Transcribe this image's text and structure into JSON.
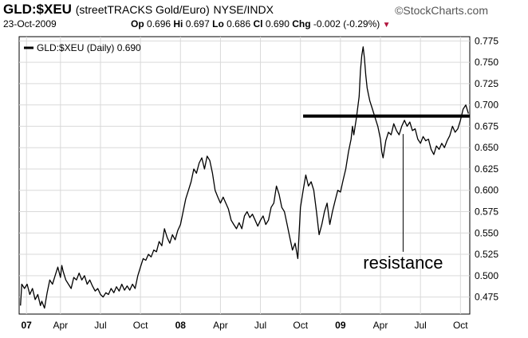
{
  "header": {
    "symbol": "GLD:$XEU",
    "description": "(streetTRACKS Gold/Euro)",
    "exchange": "NYSE/INDX",
    "brand": "©StockCharts.com",
    "date": "23-Oct-2009",
    "open_label": "Op",
    "open": "0.696",
    "high_label": "Hi",
    "high": "0.697",
    "low_label": "Lo",
    "low": "0.686",
    "close_label": "Cl",
    "close": "0.690",
    "change_label": "Chg",
    "change": "-0.002 (-0.29%)",
    "change_color": "#b0143c"
  },
  "chart_data": {
    "type": "line",
    "legend": "GLD:$XEU (Daily) 0.690",
    "legend_position": "top-left",
    "ylim": [
      0.455,
      0.78
    ],
    "yticks": [
      "0.775",
      "0.750",
      "0.725",
      "0.700",
      "0.675",
      "0.650",
      "0.625",
      "0.600",
      "0.575",
      "0.550",
      "0.525",
      "0.500",
      "0.475"
    ],
    "grid": true,
    "x_labels": [
      {
        "label": "07",
        "t": 0.45,
        "bold": true
      },
      {
        "label": "Apr",
        "t": 3.0,
        "bold": false
      },
      {
        "label": "Jul",
        "t": 6.0,
        "bold": false
      },
      {
        "label": "Oct",
        "t": 9.0,
        "bold": false
      },
      {
        "label": "08",
        "t": 12.0,
        "bold": true
      },
      {
        "label": "Apr",
        "t": 15.0,
        "bold": false
      },
      {
        "label": "Jul",
        "t": 18.0,
        "bold": false
      },
      {
        "label": "Oct",
        "t": 21.0,
        "bold": false
      },
      {
        "label": "09",
        "t": 24.0,
        "bold": true
      },
      {
        "label": "Apr",
        "t": 27.0,
        "bold": false
      },
      {
        "label": "Jul",
        "t": 30.0,
        "bold": false
      },
      {
        "label": "Oct",
        "t": 33.0,
        "bold": false
      }
    ],
    "x_range_months": [
      -0.1,
      33.7
    ],
    "series": [
      {
        "points": [
          [
            0.0,
            0.465
          ],
          [
            0.1,
            0.49
          ],
          [
            0.3,
            0.485
          ],
          [
            0.5,
            0.49
          ],
          [
            0.7,
            0.478
          ],
          [
            0.9,
            0.485
          ],
          [
            1.1,
            0.472
          ],
          [
            1.3,
            0.478
          ],
          [
            1.5,
            0.465
          ],
          [
            1.6,
            0.47
          ],
          [
            1.8,
            0.462
          ],
          [
            2.0,
            0.48
          ],
          [
            2.2,
            0.495
          ],
          [
            2.4,
            0.49
          ],
          [
            2.6,
            0.5
          ],
          [
            2.8,
            0.51
          ],
          [
            3.0,
            0.498
          ],
          [
            3.1,
            0.512
          ],
          [
            3.2,
            0.505
          ],
          [
            3.4,
            0.495
          ],
          [
            3.6,
            0.49
          ],
          [
            3.8,
            0.485
          ],
          [
            4.0,
            0.498
          ],
          [
            4.2,
            0.495
          ],
          [
            4.4,
            0.503
          ],
          [
            4.6,
            0.495
          ],
          [
            4.8,
            0.5
          ],
          [
            5.0,
            0.49
          ],
          [
            5.2,
            0.495
          ],
          [
            5.4,
            0.488
          ],
          [
            5.6,
            0.482
          ],
          [
            5.8,
            0.485
          ],
          [
            6.0,
            0.478
          ],
          [
            6.2,
            0.475
          ],
          [
            6.4,
            0.48
          ],
          [
            6.6,
            0.478
          ],
          [
            6.8,
            0.485
          ],
          [
            7.0,
            0.48
          ],
          [
            7.2,
            0.487
          ],
          [
            7.4,
            0.482
          ],
          [
            7.6,
            0.49
          ],
          [
            7.8,
            0.483
          ],
          [
            8.0,
            0.488
          ],
          [
            8.2,
            0.483
          ],
          [
            8.4,
            0.49
          ],
          [
            8.6,
            0.485
          ],
          [
            8.8,
            0.5
          ],
          [
            9.0,
            0.51
          ],
          [
            9.2,
            0.52
          ],
          [
            9.4,
            0.518
          ],
          [
            9.6,
            0.525
          ],
          [
            9.8,
            0.522
          ],
          [
            10.0,
            0.53
          ],
          [
            10.2,
            0.528
          ],
          [
            10.4,
            0.54
          ],
          [
            10.6,
            0.535
          ],
          [
            10.8,
            0.555
          ],
          [
            11.0,
            0.545
          ],
          [
            11.2,
            0.538
          ],
          [
            11.4,
            0.548
          ],
          [
            11.6,
            0.542
          ],
          [
            11.8,
            0.553
          ],
          [
            12.0,
            0.56
          ],
          [
            12.2,
            0.575
          ],
          [
            12.4,
            0.59
          ],
          [
            12.6,
            0.6
          ],
          [
            12.8,
            0.61
          ],
          [
            13.0,
            0.625
          ],
          [
            13.2,
            0.62
          ],
          [
            13.4,
            0.632
          ],
          [
            13.6,
            0.638
          ],
          [
            13.8,
            0.625
          ],
          [
            14.0,
            0.64
          ],
          [
            14.2,
            0.635
          ],
          [
            14.4,
            0.62
          ],
          [
            14.6,
            0.6
          ],
          [
            14.8,
            0.592
          ],
          [
            15.0,
            0.585
          ],
          [
            15.2,
            0.592
          ],
          [
            15.4,
            0.585
          ],
          [
            15.6,
            0.578
          ],
          [
            15.8,
            0.565
          ],
          [
            16.0,
            0.56
          ],
          [
            16.2,
            0.555
          ],
          [
            16.4,
            0.562
          ],
          [
            16.6,
            0.555
          ],
          [
            16.8,
            0.57
          ],
          [
            17.0,
            0.575
          ],
          [
            17.2,
            0.568
          ],
          [
            17.4,
            0.572
          ],
          [
            17.6,
            0.565
          ],
          [
            17.8,
            0.558
          ],
          [
            18.0,
            0.565
          ],
          [
            18.2,
            0.57
          ],
          [
            18.4,
            0.56
          ],
          [
            18.6,
            0.565
          ],
          [
            18.8,
            0.58
          ],
          [
            19.0,
            0.585
          ],
          [
            19.2,
            0.605
          ],
          [
            19.4,
            0.595
          ],
          [
            19.6,
            0.58
          ],
          [
            19.8,
            0.575
          ],
          [
            20.0,
            0.56
          ],
          [
            20.2,
            0.545
          ],
          [
            20.4,
            0.53
          ],
          [
            20.6,
            0.538
          ],
          [
            20.8,
            0.52
          ],
          [
            21.0,
            0.58
          ],
          [
            21.2,
            0.6
          ],
          [
            21.4,
            0.618
          ],
          [
            21.6,
            0.605
          ],
          [
            21.8,
            0.61
          ],
          [
            22.0,
            0.6
          ],
          [
            22.2,
            0.575
          ],
          [
            22.4,
            0.548
          ],
          [
            22.6,
            0.56
          ],
          [
            22.8,
            0.575
          ],
          [
            23.0,
            0.585
          ],
          [
            23.2,
            0.56
          ],
          [
            23.4,
            0.575
          ],
          [
            23.6,
            0.588
          ],
          [
            23.8,
            0.6
          ],
          [
            24.0,
            0.598
          ],
          [
            24.2,
            0.612
          ],
          [
            24.4,
            0.625
          ],
          [
            24.6,
            0.645
          ],
          [
            24.8,
            0.66
          ],
          [
            24.9,
            0.675
          ],
          [
            25.0,
            0.665
          ],
          [
            25.2,
            0.685
          ],
          [
            25.4,
            0.71
          ],
          [
            25.5,
            0.74
          ],
          [
            25.6,
            0.758
          ],
          [
            25.7,
            0.768
          ],
          [
            25.8,
            0.755
          ],
          [
            25.9,
            0.735
          ],
          [
            26.0,
            0.72
          ],
          [
            26.1,
            0.712
          ],
          [
            26.2,
            0.705
          ],
          [
            26.4,
            0.695
          ],
          [
            26.6,
            0.685
          ],
          [
            26.8,
            0.675
          ],
          [
            27.0,
            0.66
          ],
          [
            27.1,
            0.645
          ],
          [
            27.2,
            0.638
          ],
          [
            27.4,
            0.658
          ],
          [
            27.6,
            0.668
          ],
          [
            27.8,
            0.665
          ],
          [
            28.0,
            0.678
          ],
          [
            28.2,
            0.67
          ],
          [
            28.4,
            0.665
          ],
          [
            28.6,
            0.675
          ],
          [
            28.8,
            0.682
          ],
          [
            29.0,
            0.675
          ],
          [
            29.2,
            0.68
          ],
          [
            29.4,
            0.67
          ],
          [
            29.6,
            0.672
          ],
          [
            29.8,
            0.66
          ],
          [
            30.0,
            0.655
          ],
          [
            30.2,
            0.663
          ],
          [
            30.4,
            0.658
          ],
          [
            30.6,
            0.66
          ],
          [
            30.8,
            0.648
          ],
          [
            31.0,
            0.642
          ],
          [
            31.2,
            0.652
          ],
          [
            31.4,
            0.648
          ],
          [
            31.6,
            0.655
          ],
          [
            31.8,
            0.65
          ],
          [
            32.0,
            0.658
          ],
          [
            32.2,
            0.664
          ],
          [
            32.4,
            0.675
          ],
          [
            32.6,
            0.668
          ],
          [
            32.8,
            0.672
          ],
          [
            33.0,
            0.682
          ],
          [
            33.2,
            0.695
          ],
          [
            33.4,
            0.7
          ],
          [
            33.6,
            0.69
          ]
        ]
      }
    ],
    "annotations": {
      "resistance_level": 0.687,
      "resistance_start_t": 21.2,
      "resistance_end_t": 33.7,
      "text": "resistance",
      "pointer_t": 28.7,
      "pointer_from_value": 0.666,
      "pointer_to_value": 0.528,
      "text_value": 0.508
    }
  }
}
